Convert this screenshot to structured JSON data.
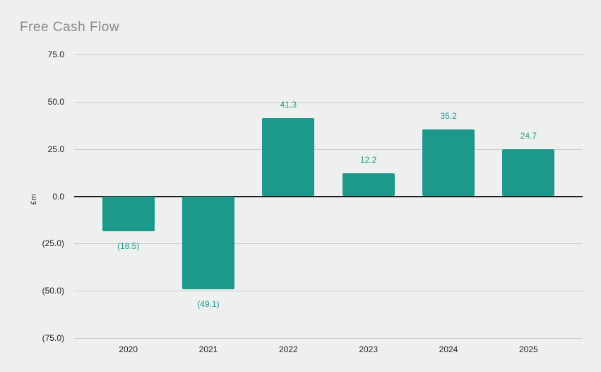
{
  "page": {
    "background_color": "#edf0ef"
  },
  "chart_data": {
    "type": "bar",
    "title": "Free Cash Flow",
    "xlabel": "",
    "ylabel": "£m",
    "categories": [
      "2020",
      "2021",
      "2022",
      "2023",
      "2024",
      "2025"
    ],
    "values": [
      -18.5,
      -49.1,
      41.3,
      12.2,
      35.2,
      24.7
    ],
    "value_labels": [
      "(18.5)",
      "(49.1)",
      "41.3",
      "12.2",
      "35.2",
      "24.7"
    ],
    "series_name": "Free Cash Flow (£m)",
    "ylim": [
      -75,
      75
    ],
    "y_ticks": [
      75,
      50,
      25,
      0,
      -25,
      -50,
      -75
    ],
    "y_tick_labels": [
      "75.0",
      "50.0",
      "25.0",
      "0.0",
      "(25.0)",
      "(50.0)",
      "(75.0)"
    ],
    "grid": true,
    "legend_position": "none",
    "bar_color": "#1d998c",
    "value_label_color": "#1d998c",
    "title_color": "#898989",
    "axis_text_color": "#212121",
    "gridline_color": "#c7cbca",
    "zero_line_color": "#212121"
  }
}
